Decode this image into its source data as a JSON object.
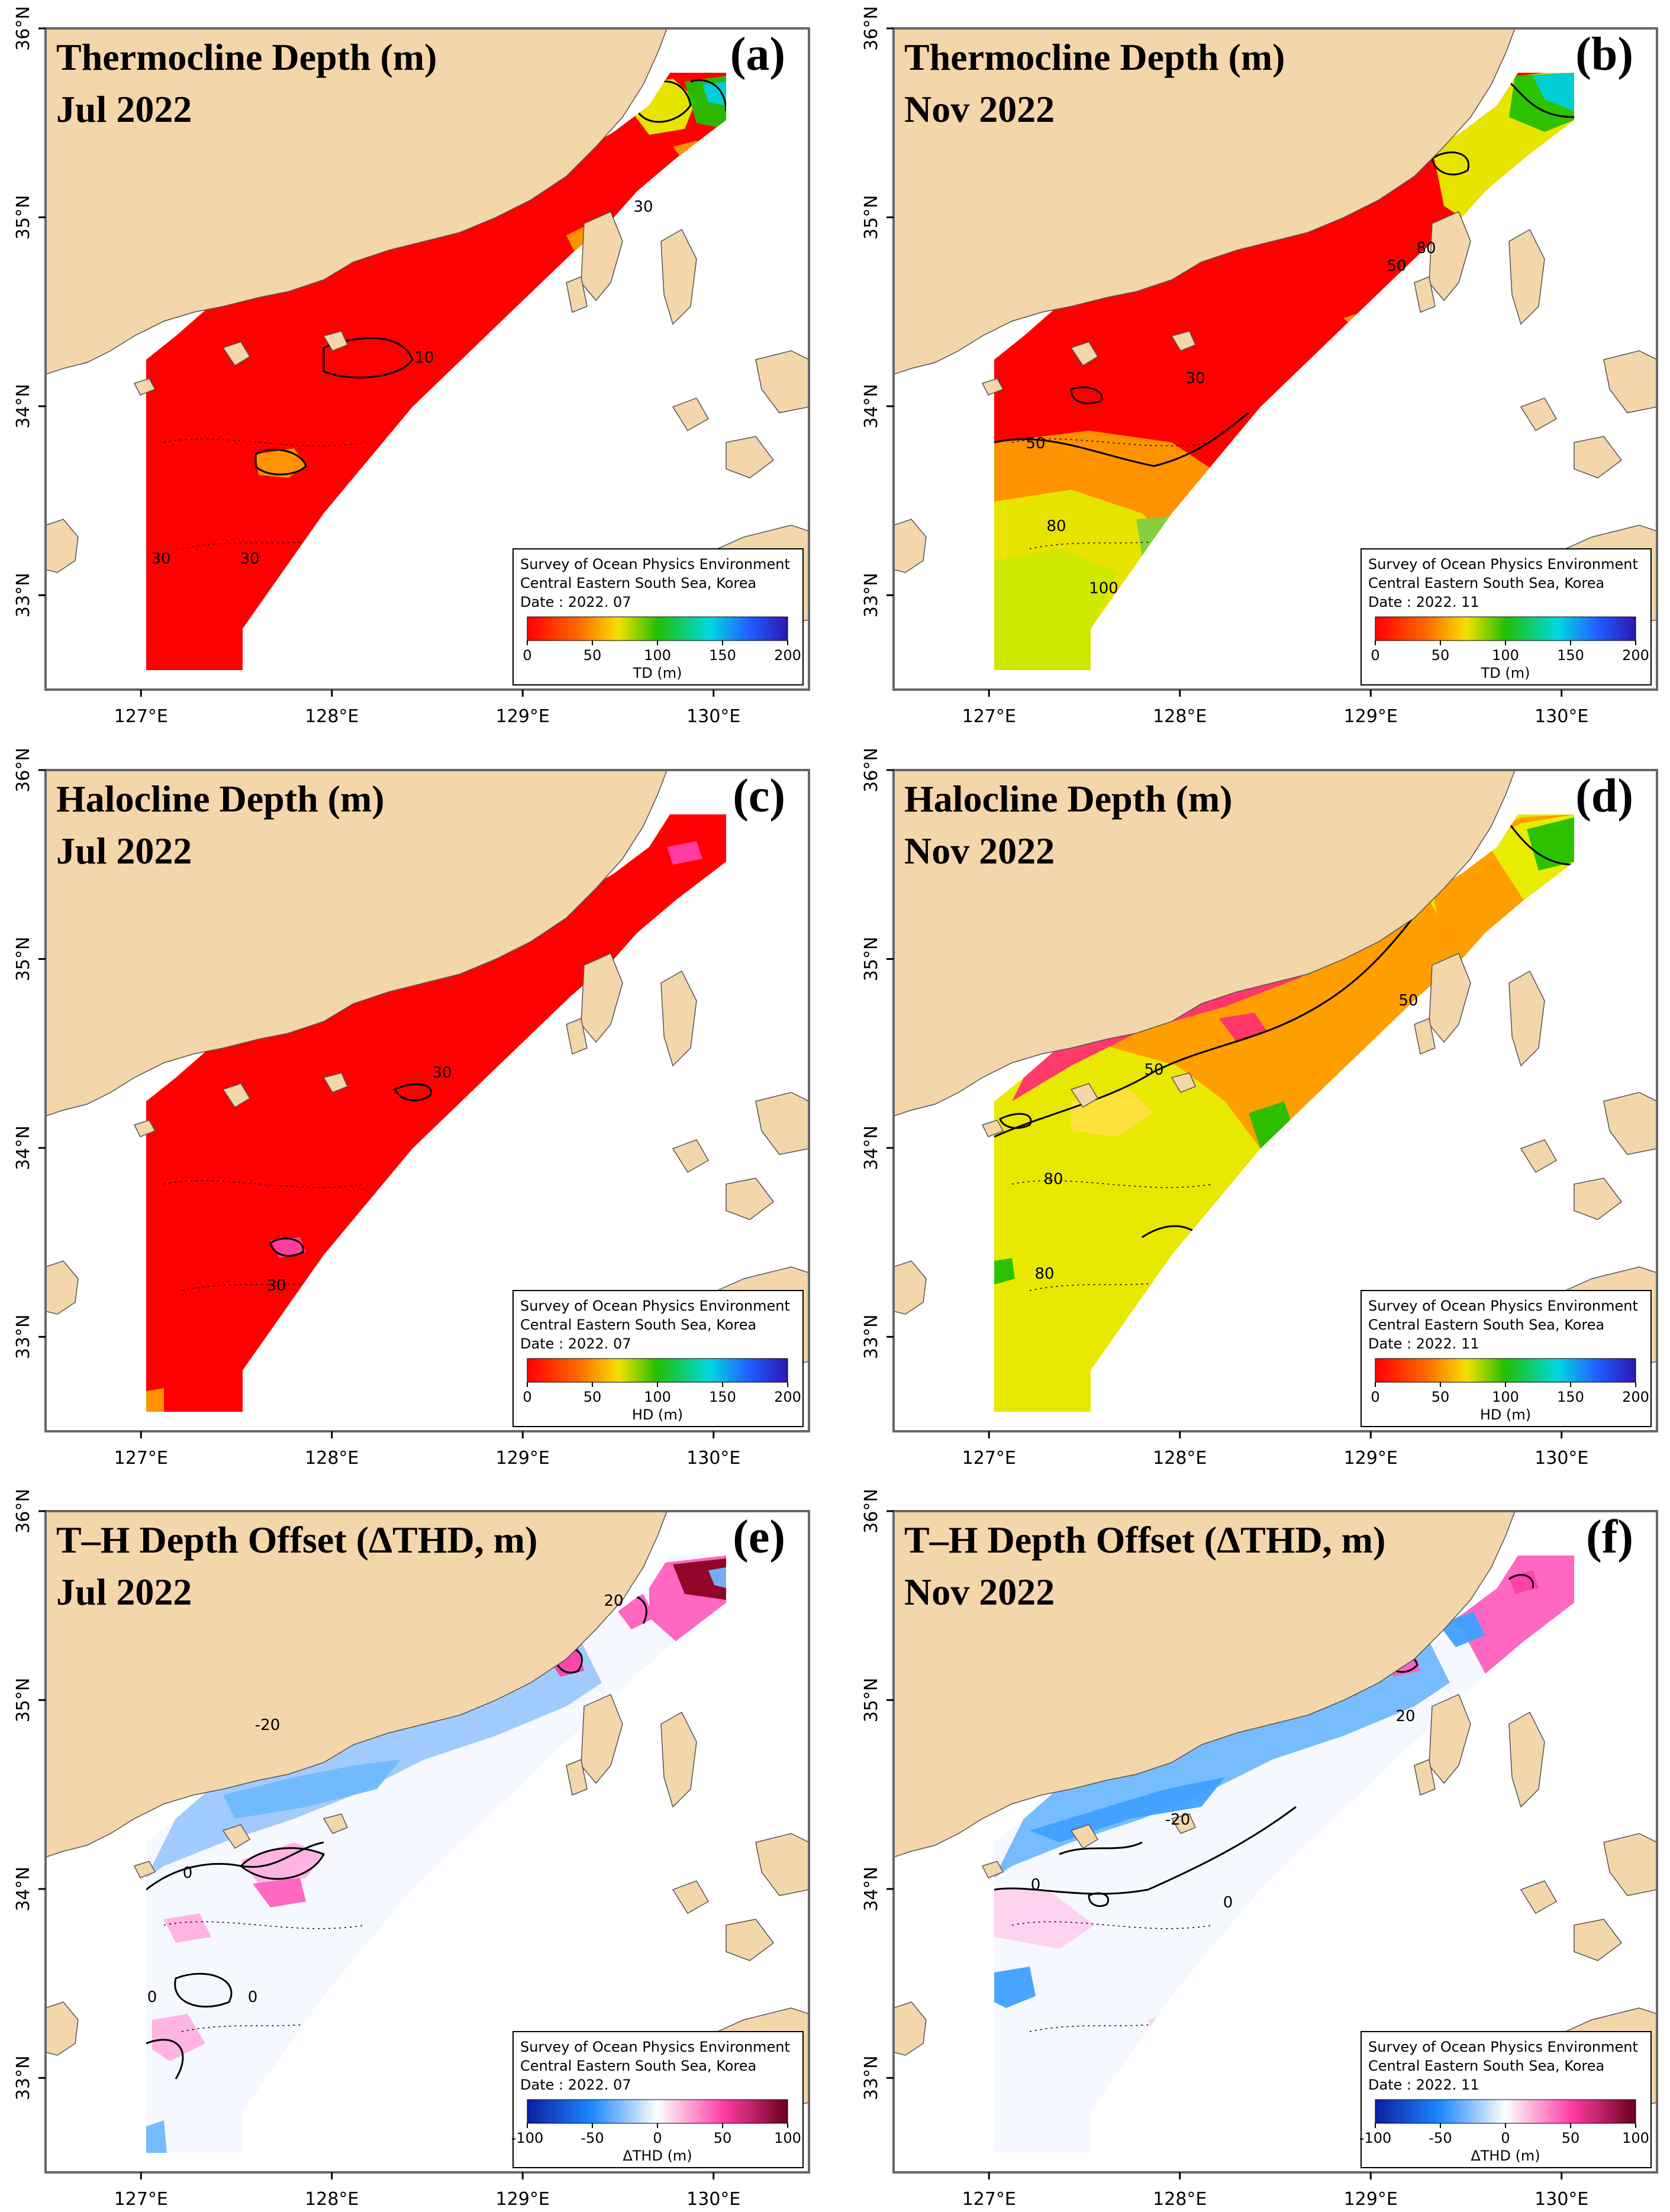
{
  "colors": {
    "land": "#f4d6ab",
    "sea": "#ffffff",
    "red": "#ff0000",
    "orange": "#ff9a00",
    "yellow": "#e6f000",
    "green": "#22c000",
    "cyan": "#00d0e0",
    "blue": "#1a3fd6",
    "pink": "#ff5fc0",
    "lightblue": "#70b8ff",
    "darkred": "#8b0020",
    "navy": "#0a2ca8"
  },
  "axis": {
    "lon_ticks": [
      "127°E",
      "128°E",
      "129°E",
      "130°E"
    ],
    "lat_ticks": [
      "33°N",
      "34°N",
      "35°N",
      "36°N"
    ]
  },
  "legend": {
    "line1": "Survey of Ocean Physics Environment",
    "line2": "Central Eastern South Sea, Korea"
  },
  "panels": [
    {
      "id": "a",
      "title_line1": "Thermocline Depth (m)",
      "title_line2": "Jul 2022",
      "letter": "(a)",
      "date": "Date : 2022. 07",
      "cbar_label": "TD (m)",
      "cbar_ticks": [
        "0",
        "50",
        "100",
        "150",
        "200"
      ],
      "cbar_type": "sequential",
      "contour_labels": [
        "10",
        "30",
        "30",
        "30"
      ]
    },
    {
      "id": "b",
      "title_line1": "Thermocline Depth (m)",
      "title_line2": "Nov 2022",
      "letter": "(b)",
      "date": "Date : 2022. 11",
      "cbar_label": "TD (m)",
      "cbar_ticks": [
        "0",
        "50",
        "100",
        "150",
        "200"
      ],
      "cbar_type": "sequential",
      "contour_labels": [
        "50",
        "80",
        "30",
        "50",
        "80",
        "100"
      ]
    },
    {
      "id": "c",
      "title_line1": "Halocline Depth (m)",
      "title_line2": "Jul 2022",
      "letter": "(c)",
      "date": "Date : 2022. 07",
      "cbar_label": "HD (m)",
      "cbar_ticks": [
        "0",
        "50",
        "100",
        "150",
        "200"
      ],
      "cbar_type": "sequential",
      "contour_labels": [
        "30",
        "30"
      ]
    },
    {
      "id": "d",
      "title_line1": "Halocline Depth (m)",
      "title_line2": "Nov 2022",
      "letter": "(d)",
      "date": "Date : 2022. 11",
      "cbar_label": "HD (m)",
      "cbar_ticks": [
        "0",
        "50",
        "100",
        "150",
        "200"
      ],
      "cbar_type": "sequential",
      "contour_labels": [
        "50",
        "50",
        "80",
        "80"
      ]
    },
    {
      "id": "e",
      "title_line1": "T–H Depth Offset (ΔTHD, m)",
      "title_line2": "Jul 2022",
      "letter": "(e)",
      "date": "Date : 2022. 07",
      "cbar_label": "ΔTHD (m)",
      "cbar_ticks": [
        "-100",
        "-50",
        "0",
        "50",
        "100"
      ],
      "cbar_type": "diverging",
      "contour_labels": [
        "20",
        "-20",
        "0",
        "0",
        "0"
      ]
    },
    {
      "id": "f",
      "title_line1": "T–H Depth Offset (ΔTHD, m)",
      "title_line2": "Nov 2022",
      "letter": "(f)",
      "date": "Date : 2022. 11",
      "cbar_label": "ΔTHD (m)",
      "cbar_ticks": [
        "-100",
        "-50",
        "0",
        "50",
        "100"
      ],
      "cbar_type": "diverging",
      "contour_labels": [
        "20",
        "-20",
        "0",
        "0"
      ]
    }
  ]
}
